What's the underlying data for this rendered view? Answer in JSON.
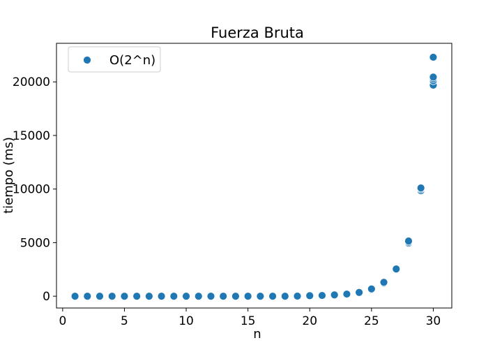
{
  "chart_data": {
    "type": "scatter",
    "title": "Fuerza Bruta",
    "xlabel": "n",
    "ylabel": "tiempo (ms)",
    "xlim": [
      -0.5,
      31.5
    ],
    "ylim": [
      -1100,
      23600
    ],
    "xticks": [
      0,
      5,
      10,
      15,
      20,
      25,
      30
    ],
    "yticks": [
      0,
      5000,
      10000,
      15000,
      20000
    ],
    "grid": false,
    "legend_position": "top-left",
    "series": [
      {
        "name": "O(2^n)",
        "color": "#1f77b4",
        "points": [
          {
            "x": 1,
            "y": 0
          },
          {
            "x": 2,
            "y": 0
          },
          {
            "x": 3,
            "y": 0
          },
          {
            "x": 4,
            "y": 0
          },
          {
            "x": 5,
            "y": 0
          },
          {
            "x": 6,
            "y": 0
          },
          {
            "x": 7,
            "y": 0
          },
          {
            "x": 8,
            "y": 0
          },
          {
            "x": 9,
            "y": 0
          },
          {
            "x": 10,
            "y": 0
          },
          {
            "x": 11,
            "y": 0
          },
          {
            "x": 12,
            "y": 0
          },
          {
            "x": 13,
            "y": 0
          },
          {
            "x": 14,
            "y": 0
          },
          {
            "x": 15,
            "y": 0
          },
          {
            "x": 16,
            "y": 0
          },
          {
            "x": 17,
            "y": 0
          },
          {
            "x": 18,
            "y": 0
          },
          {
            "x": 19,
            "y": 10
          },
          {
            "x": 20,
            "y": 20
          },
          {
            "x": 20,
            "y": 50
          },
          {
            "x": 21,
            "y": 40
          },
          {
            "x": 21,
            "y": 70
          },
          {
            "x": 22,
            "y": 80
          },
          {
            "x": 22,
            "y": 120
          },
          {
            "x": 23,
            "y": 160
          },
          {
            "x": 23,
            "y": 200
          },
          {
            "x": 24,
            "y": 310
          },
          {
            "x": 24,
            "y": 350
          },
          {
            "x": 25,
            "y": 620
          },
          {
            "x": 25,
            "y": 680
          },
          {
            "x": 26,
            "y": 1220
          },
          {
            "x": 26,
            "y": 1300
          },
          {
            "x": 27,
            "y": 2480
          },
          {
            "x": 27,
            "y": 2540
          },
          {
            "x": 28,
            "y": 4950
          },
          {
            "x": 28,
            "y": 5050
          },
          {
            "x": 28,
            "y": 5150
          },
          {
            "x": 29,
            "y": 9850
          },
          {
            "x": 29,
            "y": 10000
          },
          {
            "x": 29,
            "y": 10100
          },
          {
            "x": 30,
            "y": 19700
          },
          {
            "x": 30,
            "y": 20100
          },
          {
            "x": 30,
            "y": 20300
          },
          {
            "x": 30,
            "y": 20450
          },
          {
            "x": 30,
            "y": 22300
          }
        ]
      }
    ]
  }
}
